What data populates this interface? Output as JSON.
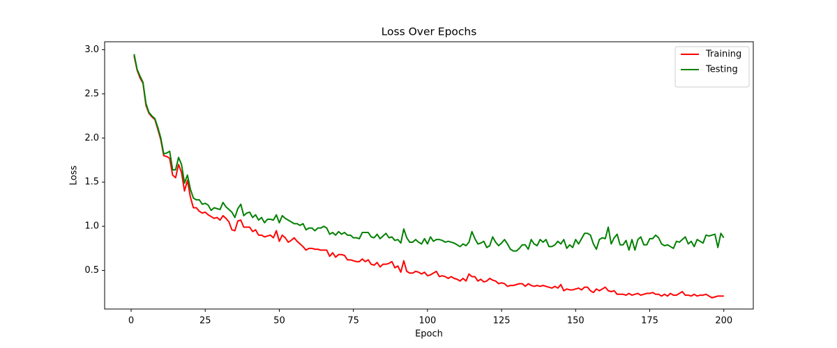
{
  "chart_data": {
    "type": "line",
    "title": "Loss Over Epochs",
    "xlabel": "Epoch",
    "ylabel": "Loss",
    "x": [
      1,
      2,
      3,
      4,
      5,
      6,
      7,
      8,
      9,
      10,
      11,
      12,
      13,
      14,
      15,
      16,
      17,
      18,
      19,
      20,
      21,
      22,
      23,
      24,
      25,
      26,
      27,
      28,
      29,
      30,
      31,
      32,
      33,
      34,
      35,
      36,
      37,
      38,
      39,
      40,
      41,
      42,
      43,
      44,
      45,
      46,
      47,
      48,
      49,
      50,
      51,
      52,
      53,
      54,
      55,
      56,
      57,
      58,
      59,
      60,
      61,
      62,
      63,
      64,
      65,
      66,
      67,
      68,
      69,
      70,
      71,
      72,
      73,
      74,
      75,
      76,
      77,
      78,
      79,
      80,
      81,
      82,
      83,
      84,
      85,
      86,
      87,
      88,
      89,
      90,
      91,
      92,
      93,
      94,
      95,
      96,
      97,
      98,
      99,
      100,
      101,
      102,
      103,
      104,
      105,
      106,
      107,
      108,
      109,
      110,
      111,
      112,
      113,
      114,
      115,
      116,
      117,
      118,
      119,
      120,
      121,
      122,
      123,
      124,
      125,
      126,
      127,
      128,
      129,
      130,
      131,
      132,
      133,
      134,
      135,
      136,
      137,
      138,
      139,
      140,
      141,
      142,
      143,
      144,
      145,
      146,
      147,
      148,
      149,
      150,
      151,
      152,
      153,
      154,
      155,
      156,
      157,
      158,
      159,
      160,
      161,
      162,
      163,
      164,
      165,
      166,
      167,
      168,
      169,
      170,
      171,
      172,
      173,
      174,
      175,
      176,
      177,
      178,
      179,
      180,
      181,
      182,
      183,
      184,
      185,
      186,
      187,
      188,
      189,
      190,
      191,
      192,
      193,
      194,
      195,
      196,
      197,
      198,
      199,
      200
    ],
    "series": [
      {
        "name": "Training",
        "color": "#ff0000",
        "values": [
          2.93,
          2.77,
          2.68,
          2.62,
          2.37,
          2.28,
          2.24,
          2.21,
          2.1,
          1.98,
          1.8,
          1.79,
          1.77,
          1.58,
          1.55,
          1.7,
          1.61,
          1.4,
          1.52,
          1.33,
          1.21,
          1.21,
          1.17,
          1.15,
          1.16,
          1.13,
          1.11,
          1.09,
          1.1,
          1.07,
          1.12,
          1.09,
          1.05,
          0.96,
          0.95,
          1.06,
          1.07,
          0.99,
          0.99,
          0.99,
          0.94,
          0.96,
          0.9,
          0.9,
          0.88,
          0.89,
          0.9,
          0.87,
          0.95,
          0.83,
          0.9,
          0.87,
          0.82,
          0.84,
          0.87,
          0.83,
          0.8,
          0.77,
          0.73,
          0.75,
          0.75,
          0.74,
          0.74,
          0.73,
          0.73,
          0.73,
          0.66,
          0.7,
          0.65,
          0.68,
          0.68,
          0.67,
          0.62,
          0.62,
          0.61,
          0.6,
          0.6,
          0.63,
          0.6,
          0.62,
          0.57,
          0.56,
          0.59,
          0.54,
          0.57,
          0.57,
          0.58,
          0.6,
          0.53,
          0.55,
          0.48,
          0.61,
          0.49,
          0.47,
          0.47,
          0.49,
          0.48,
          0.46,
          0.48,
          0.44,
          0.45,
          0.47,
          0.49,
          0.43,
          0.44,
          0.43,
          0.41,
          0.43,
          0.41,
          0.4,
          0.38,
          0.41,
          0.38,
          0.46,
          0.43,
          0.43,
          0.38,
          0.4,
          0.37,
          0.38,
          0.41,
          0.39,
          0.38,
          0.35,
          0.36,
          0.35,
          0.32,
          0.33,
          0.33,
          0.34,
          0.35,
          0.35,
          0.32,
          0.35,
          0.33,
          0.32,
          0.33,
          0.32,
          0.33,
          0.32,
          0.31,
          0.3,
          0.32,
          0.3,
          0.34,
          0.27,
          0.29,
          0.28,
          0.28,
          0.29,
          0.3,
          0.28,
          0.31,
          0.31,
          0.27,
          0.25,
          0.29,
          0.27,
          0.29,
          0.31,
          0.27,
          0.26,
          0.27,
          0.23,
          0.23,
          0.23,
          0.22,
          0.24,
          0.22,
          0.23,
          0.24,
          0.22,
          0.23,
          0.24,
          0.24,
          0.25,
          0.23,
          0.23,
          0.21,
          0.23,
          0.21,
          0.24,
          0.22,
          0.22,
          0.24,
          0.26,
          0.22,
          0.22,
          0.21,
          0.23,
          0.21,
          0.22,
          0.22,
          0.23,
          0.21,
          0.19,
          0.2,
          0.21,
          0.21,
          0.21
        ]
      },
      {
        "name": "Testing",
        "color": "#008000",
        "values": [
          2.95,
          2.78,
          2.7,
          2.63,
          2.39,
          2.29,
          2.25,
          2.22,
          2.12,
          2.0,
          1.82,
          1.83,
          1.85,
          1.64,
          1.64,
          1.78,
          1.7,
          1.49,
          1.58,
          1.42,
          1.32,
          1.3,
          1.3,
          1.25,
          1.26,
          1.24,
          1.18,
          1.21,
          1.2,
          1.19,
          1.27,
          1.22,
          1.19,
          1.16,
          1.1,
          1.2,
          1.25,
          1.12,
          1.15,
          1.16,
          1.1,
          1.13,
          1.07,
          1.1,
          1.04,
          1.08,
          1.08,
          1.07,
          1.13,
          1.04,
          1.12,
          1.09,
          1.07,
          1.05,
          1.03,
          1.03,
          1.01,
          1.03,
          0.96,
          0.98,
          0.98,
          0.95,
          0.98,
          0.98,
          1.0,
          0.98,
          0.91,
          0.93,
          0.9,
          0.94,
          0.91,
          0.93,
          0.9,
          0.9,
          0.87,
          0.87,
          0.86,
          0.93,
          0.93,
          0.93,
          0.88,
          0.87,
          0.91,
          0.86,
          0.89,
          0.92,
          0.87,
          0.88,
          0.84,
          0.85,
          0.81,
          0.97,
          0.87,
          0.82,
          0.82,
          0.85,
          0.82,
          0.8,
          0.86,
          0.8,
          0.88,
          0.83,
          0.85,
          0.85,
          0.84,
          0.82,
          0.83,
          0.82,
          0.81,
          0.79,
          0.77,
          0.8,
          0.78,
          0.82,
          0.94,
          0.86,
          0.8,
          0.81,
          0.83,
          0.76,
          0.78,
          0.88,
          0.82,
          0.78,
          0.81,
          0.85,
          0.8,
          0.74,
          0.72,
          0.72,
          0.75,
          0.79,
          0.79,
          0.74,
          0.85,
          0.8,
          0.78,
          0.85,
          0.82,
          0.85,
          0.77,
          0.77,
          0.79,
          0.83,
          0.8,
          0.85,
          0.75,
          0.79,
          0.76,
          0.85,
          0.8,
          0.86,
          0.92,
          0.92,
          0.9,
          0.8,
          0.74,
          0.85,
          0.87,
          0.86,
          0.99,
          0.8,
          0.87,
          0.91,
          0.79,
          0.79,
          0.84,
          0.73,
          0.85,
          0.73,
          0.85,
          0.88,
          0.79,
          0.79,
          0.86,
          0.86,
          0.9,
          0.87,
          0.8,
          0.78,
          0.79,
          0.77,
          0.75,
          0.83,
          0.82,
          0.85,
          0.88,
          0.8,
          0.83,
          0.77,
          0.85,
          0.83,
          0.81,
          0.9,
          0.89,
          0.9,
          0.91,
          0.76,
          0.92,
          0.87
        ]
      }
    ],
    "xlim": [
      -8.95,
      209.95
    ],
    "xticks": [
      0,
      25,
      50,
      75,
      100,
      125,
      150,
      175,
      200
    ],
    "ylim": [
      0.063,
      3.09
    ],
    "yticks": [
      0.5,
      {
        "value": 1.0,
        "label": "1.0"
      },
      1.5,
      {
        "value": 2.0,
        "label": "2.0"
      },
      2.5,
      {
        "value": 3.0,
        "label": "3.0"
      }
    ],
    "legend": "upper right"
  }
}
